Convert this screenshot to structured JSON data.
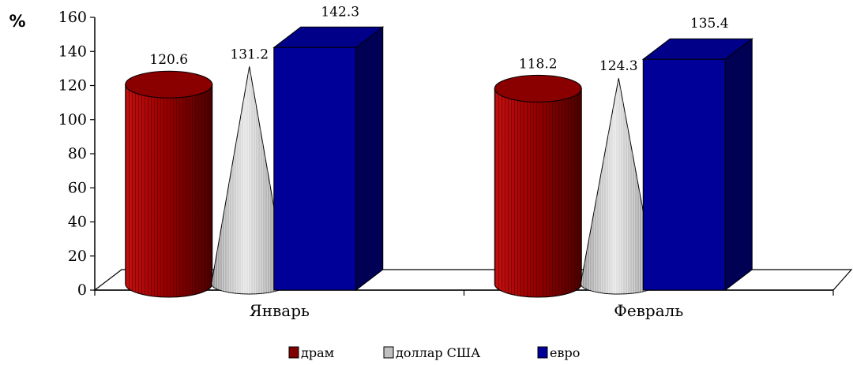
{
  "chart_data": {
    "type": "bar",
    "style": "3d",
    "ylabel": "%",
    "ylim": [
      0,
      160
    ],
    "yticks": [
      "0",
      "20",
      "40",
      "60",
      "80",
      "100",
      "120",
      "140",
      "160"
    ],
    "categories": [
      "Январь",
      "Февраль"
    ],
    "series": [
      {
        "name": "драм",
        "shape": "cylinder",
        "color": "#800000",
        "values": [
          120.6,
          118.2
        ]
      },
      {
        "name": "доллар США",
        "shape": "cone",
        "color": "#c0c0c0",
        "values": [
          131.2,
          124.3
        ]
      },
      {
        "name": "евро",
        "shape": "box",
        "color": "#000099",
        "values": [
          142.3,
          135.4
        ]
      }
    ],
    "data_labels": [
      [
        "120.6",
        "118.2"
      ],
      [
        "131.2",
        "124.3"
      ],
      [
        "142.3",
        "135.4"
      ]
    ],
    "legend_position": "bottom",
    "grid": false
  }
}
